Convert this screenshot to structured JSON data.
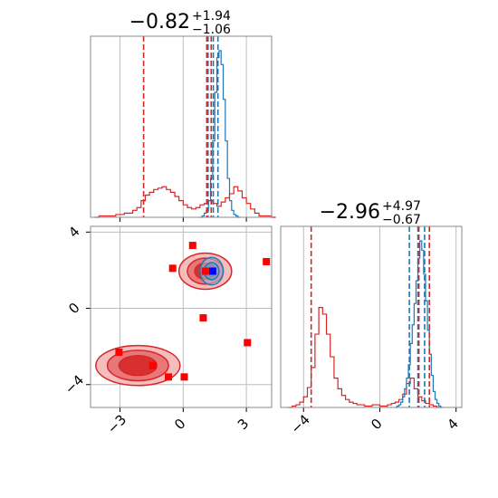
{
  "chart_data": [
    {
      "panel": "top-left",
      "type": "histogram",
      "title": {
        "main": "−0.82",
        "sup": "+1.94",
        "sub": "−1.06"
      },
      "xlim": [
        -4.4,
        4.2
      ],
      "xticks": [
        -3,
        0,
        3
      ],
      "grid": true,
      "series": [
        {
          "color": "#d62728",
          "bin_width": 0.2,
          "bins_start": -4.2,
          "counts": [
            0,
            1,
            1,
            1,
            1,
            2,
            2,
            3,
            3,
            5,
            7,
            12,
            16,
            18,
            20,
            21,
            22,
            20,
            18,
            15,
            12,
            9,
            7,
            6,
            7,
            9,
            10,
            12,
            10,
            8,
            11,
            14,
            17,
            22,
            19,
            14,
            10,
            6,
            3,
            1,
            1,
            1,
            0
          ]
        },
        {
          "color": "#1f77b4",
          "bin_width": 0.1,
          "bins_start": 0.8,
          "counts": [
            0,
            1,
            3,
            5,
            12,
            28,
            55,
            90,
            115,
            120,
            110,
            85,
            55,
            28,
            12,
            5,
            2,
            1,
            0
          ]
        }
      ],
      "quantile_lines": [
        {
          "color": "#d62728",
          "x": [
            -1.88,
            1.12,
            1.33
          ]
        },
        {
          "color": "#1f77b4",
          "x": [
            1.18,
            1.43,
            1.65
          ]
        }
      ]
    },
    {
      "panel": "bottom-right",
      "type": "histogram",
      "title": {
        "main": "−2.96",
        "sup": "+4.97",
        "sub": "−0.67"
      },
      "xlim": [
        -5.2,
        4.3
      ],
      "xticks": [
        -4,
        0,
        4
      ],
      "grid": true,
      "series": [
        {
          "color": "#d62728",
          "bin_width": 0.2,
          "bins_start": -4.8,
          "counts": [
            0,
            1,
            2,
            4,
            8,
            15,
            30,
            55,
            75,
            70,
            55,
            38,
            22,
            14,
            9,
            6,
            4,
            3,
            2,
            2,
            1,
            1,
            2,
            2,
            1,
            1,
            2,
            3,
            4,
            6,
            10,
            18,
            22,
            14,
            8,
            5,
            3,
            2,
            1,
            0
          ]
        },
        {
          "color": "#1f77b4",
          "bin_width": 0.1,
          "bins_start": 0.8,
          "counts": [
            0,
            1,
            2,
            4,
            8,
            14,
            22,
            32,
            48,
            62,
            78,
            95,
            112,
            125,
            118,
            100,
            80,
            58,
            40,
            24,
            12,
            6,
            3,
            1,
            0
          ]
        }
      ],
      "quantile_lines": [
        {
          "color": "#d62728",
          "x": [
            -3.6,
            2.05,
            2.6
          ]
        },
        {
          "color": "#1f77b4",
          "x": [
            1.55,
            2.0,
            2.35
          ]
        }
      ]
    },
    {
      "panel": "bottom-left",
      "type": "scatter",
      "xlim": [
        -4.4,
        4.2
      ],
      "ylim": [
        -5.2,
        4.3
      ],
      "xticks": [
        -3,
        0,
        3
      ],
      "yticks": [
        -4,
        0,
        4
      ],
      "grid": true,
      "contours": [
        {
          "color": "#d62728",
          "cx": 1.05,
          "cy": 1.95,
          "levels": [
            [
              1.25,
              0.95
            ],
            [
              0.85,
              0.68
            ],
            [
              0.5,
              0.42
            ]
          ]
        },
        {
          "color": "#d62728",
          "cx": -2.15,
          "cy": -3.0,
          "levels": [
            [
              2.0,
              1.05
            ],
            [
              1.45,
              0.8
            ],
            [
              0.9,
              0.52
            ]
          ]
        },
        {
          "color": "#1f77b4",
          "cx": 1.35,
          "cy": 1.95,
          "levels": [
            [
              0.55,
              0.72
            ],
            [
              0.35,
              0.45
            ]
          ]
        }
      ],
      "points": [
        {
          "x": 0.45,
          "y": 3.3,
          "color": "#ff0000"
        },
        {
          "x": -0.5,
          "y": 2.1,
          "color": "#ff0000"
        },
        {
          "x": 3.95,
          "y": 2.45,
          "color": "#ff0000"
        },
        {
          "x": 1.05,
          "y": 1.95,
          "color": "#ff0000"
        },
        {
          "x": 1.4,
          "y": 1.95,
          "color": "#0000ff"
        },
        {
          "x": 0.95,
          "y": -0.5,
          "color": "#ff0000"
        },
        {
          "x": 3.05,
          "y": -1.8,
          "color": "#ff0000"
        },
        {
          "x": -3.05,
          "y": -2.3,
          "color": "#ff0000"
        },
        {
          "x": -1.45,
          "y": -3.0,
          "color": "#ff0000"
        },
        {
          "x": -0.7,
          "y": -3.6,
          "color": "#ff0000"
        },
        {
          "x": 0.05,
          "y": -3.6,
          "color": "#ff0000"
        }
      ]
    }
  ]
}
